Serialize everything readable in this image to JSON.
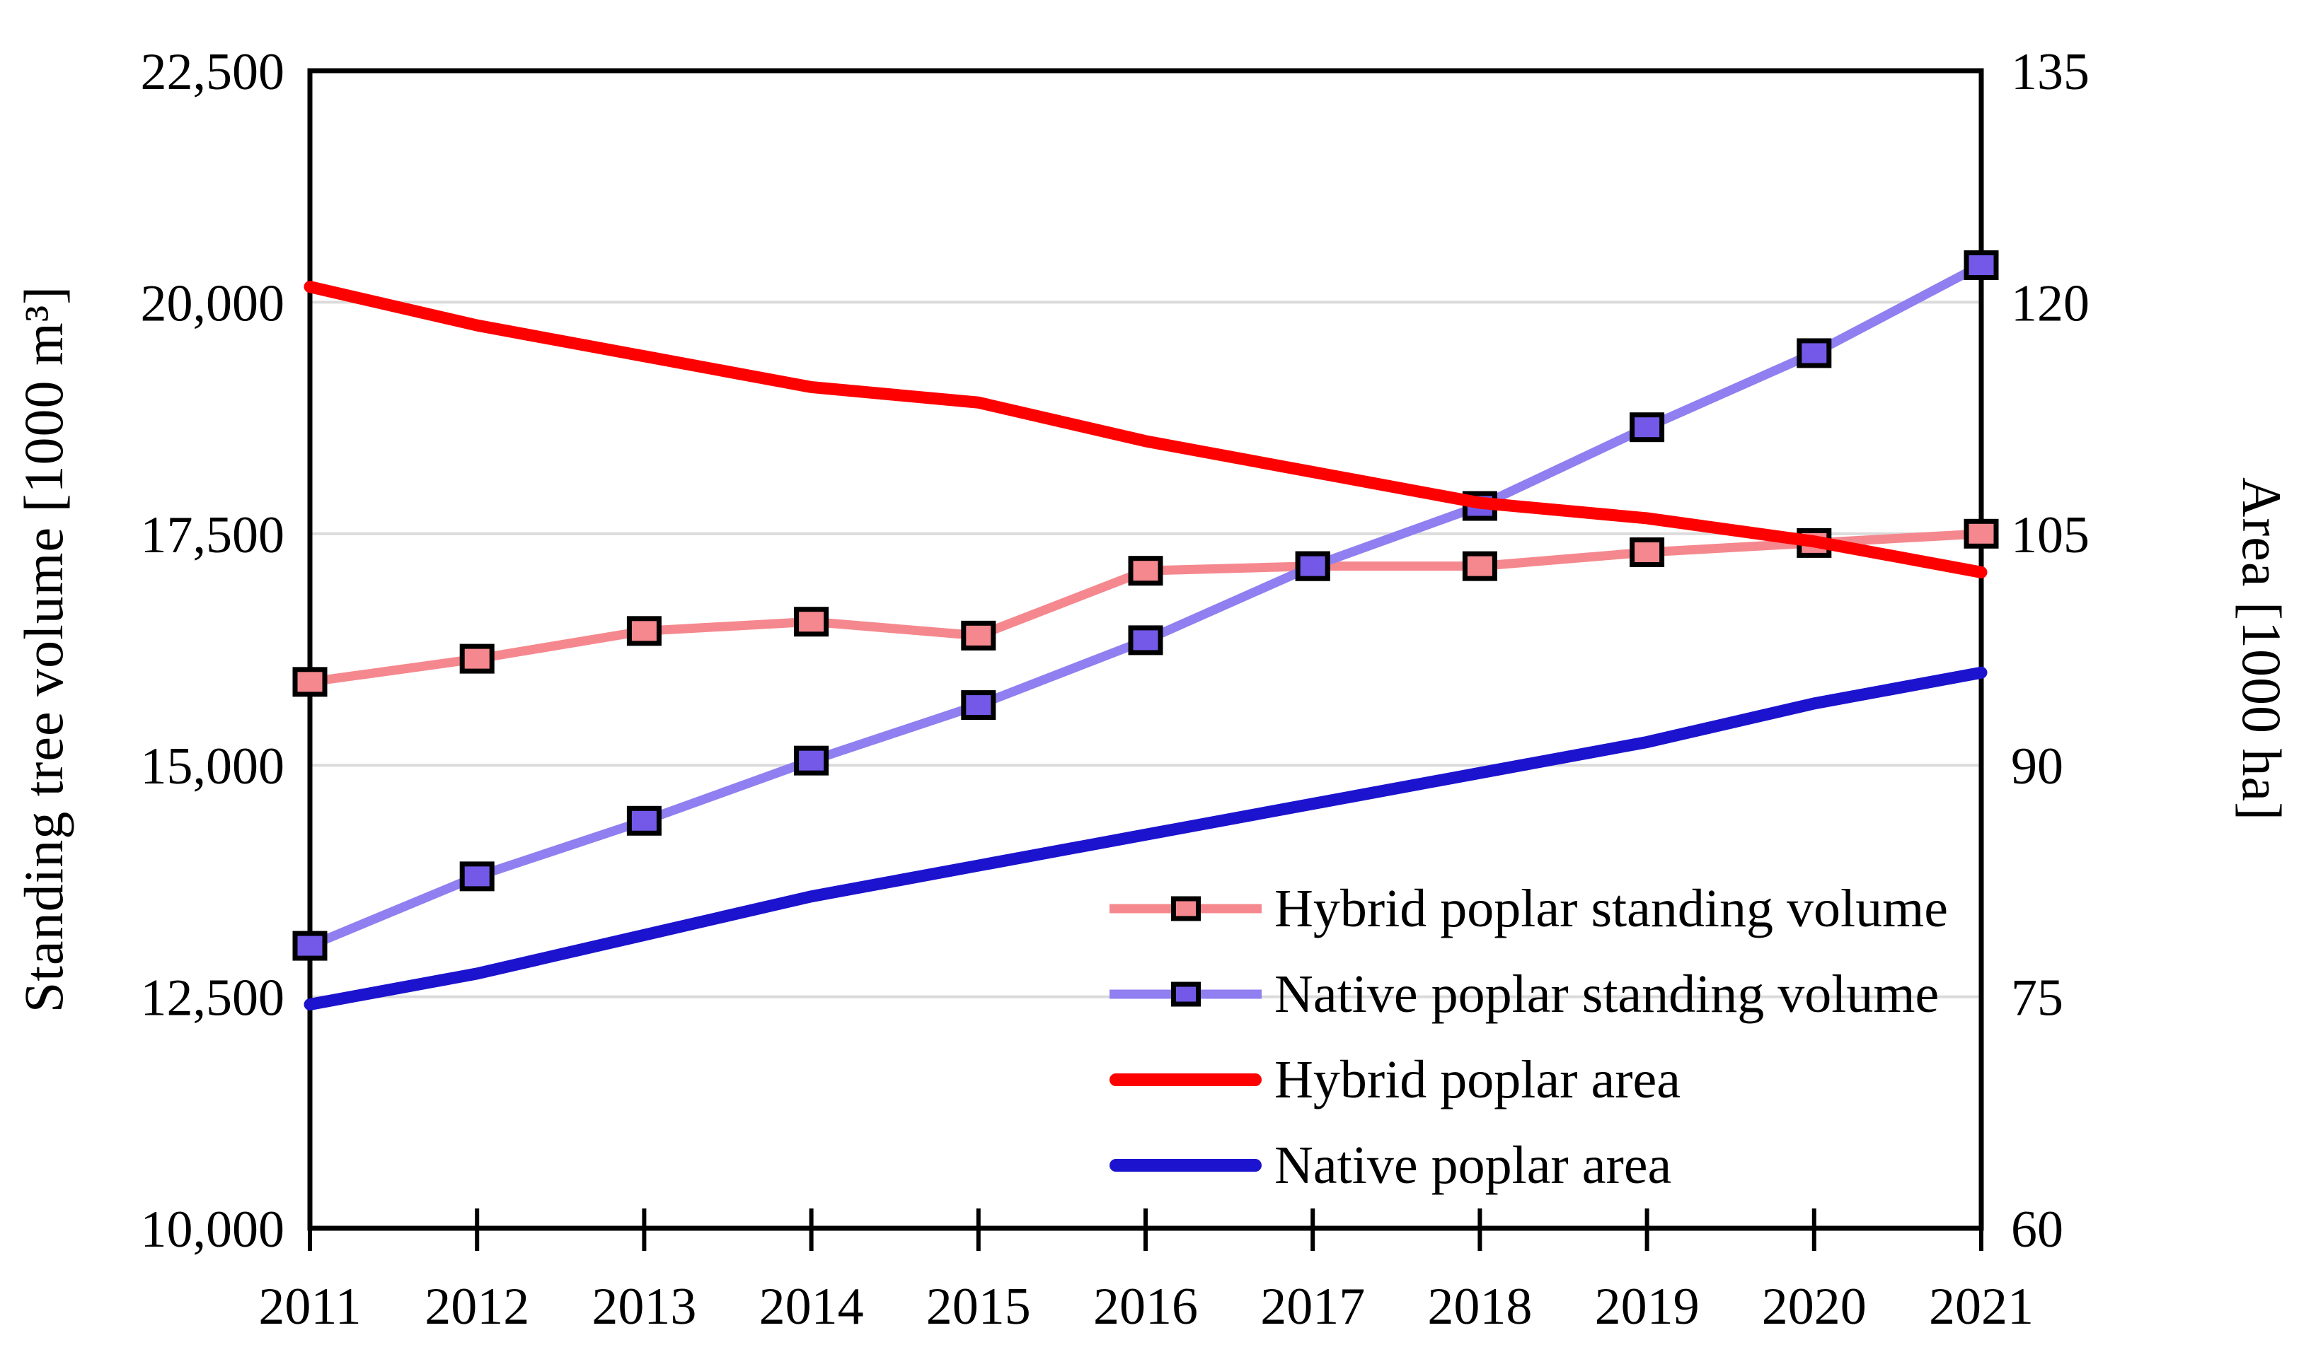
{
  "chart_data": {
    "type": "line",
    "title": "",
    "x": {
      "label": "",
      "categories": [
        "2011",
        "2012",
        "2013",
        "2014",
        "2015",
        "2016",
        "2017",
        "2018",
        "2019",
        "2020",
        "2021"
      ]
    },
    "y_left": {
      "label": "Standing tree volume [1000 m³]",
      "min": 10000,
      "max": 22500,
      "ticks": [
        {
          "v": 10000,
          "label": "10,000"
        },
        {
          "v": 12500,
          "label": "12,500"
        },
        {
          "v": 15000,
          "label": "15,000"
        },
        {
          "v": 17500,
          "label": "17,500"
        },
        {
          "v": 20000,
          "label": "20,000"
        },
        {
          "v": 22500,
          "label": "22,500"
        }
      ]
    },
    "y_right": {
      "label": "Area [1000 ha]",
      "min": 60,
      "max": 135,
      "ticks": [
        {
          "v": 60,
          "label": "60"
        },
        {
          "v": 75,
          "label": "75"
        },
        {
          "v": 90,
          "label": "90"
        },
        {
          "v": 105,
          "label": "105"
        },
        {
          "v": 120,
          "label": "120"
        },
        {
          "v": 135,
          "label": "135"
        }
      ]
    },
    "grid": "horizontal",
    "legend_position": "inside-bottom-right",
    "series": [
      {
        "name": "Hybrid poplar standing volume",
        "axis": "left",
        "type": "line+marker",
        "marker": "square",
        "line_color": "#F5888E",
        "marker_fill": "#F5888E",
        "line_width": 13,
        "values": [
          15900,
          16150,
          16450,
          16550,
          16400,
          17100,
          17150,
          17150,
          17300,
          17400,
          17500
        ]
      },
      {
        "name": "Native poplar standing volume",
        "axis": "left",
        "type": "line+marker",
        "marker": "square",
        "line_color": "#8F7FF0",
        "marker_fill": "#7459E8",
        "line_width": 13,
        "values": [
          13050,
          13800,
          14400,
          15050,
          15650,
          16350,
          17150,
          17800,
          18650,
          19450,
          20400
        ]
      },
      {
        "name": "Hybrid poplar area",
        "axis": "right",
        "type": "line",
        "marker": "none",
        "line_color": "#FE0000",
        "line_width": 17,
        "values": [
          121,
          118.5,
          116.5,
          114.5,
          113.5,
          111,
          109,
          107,
          106,
          104.5,
          102.5
        ]
      },
      {
        "name": "Native poplar area",
        "axis": "right",
        "type": "line",
        "marker": "none",
        "line_color": "#1C13CE",
        "line_width": 17,
        "values": [
          74.5,
          76.5,
          79,
          81.5,
          83.5,
          85.5,
          87.5,
          89.5,
          91.5,
          94,
          96
        ]
      }
    ]
  },
  "colors": {
    "background": "#FFFFFF",
    "axis": "#000000",
    "gridline": "#DBDBDB",
    "hybrid_volume": "#F5888E",
    "native_volume_line": "#8F7FF0",
    "native_volume_marker": "#7459E8",
    "hybrid_area": "#FE0000",
    "native_area": "#1C13CE"
  }
}
